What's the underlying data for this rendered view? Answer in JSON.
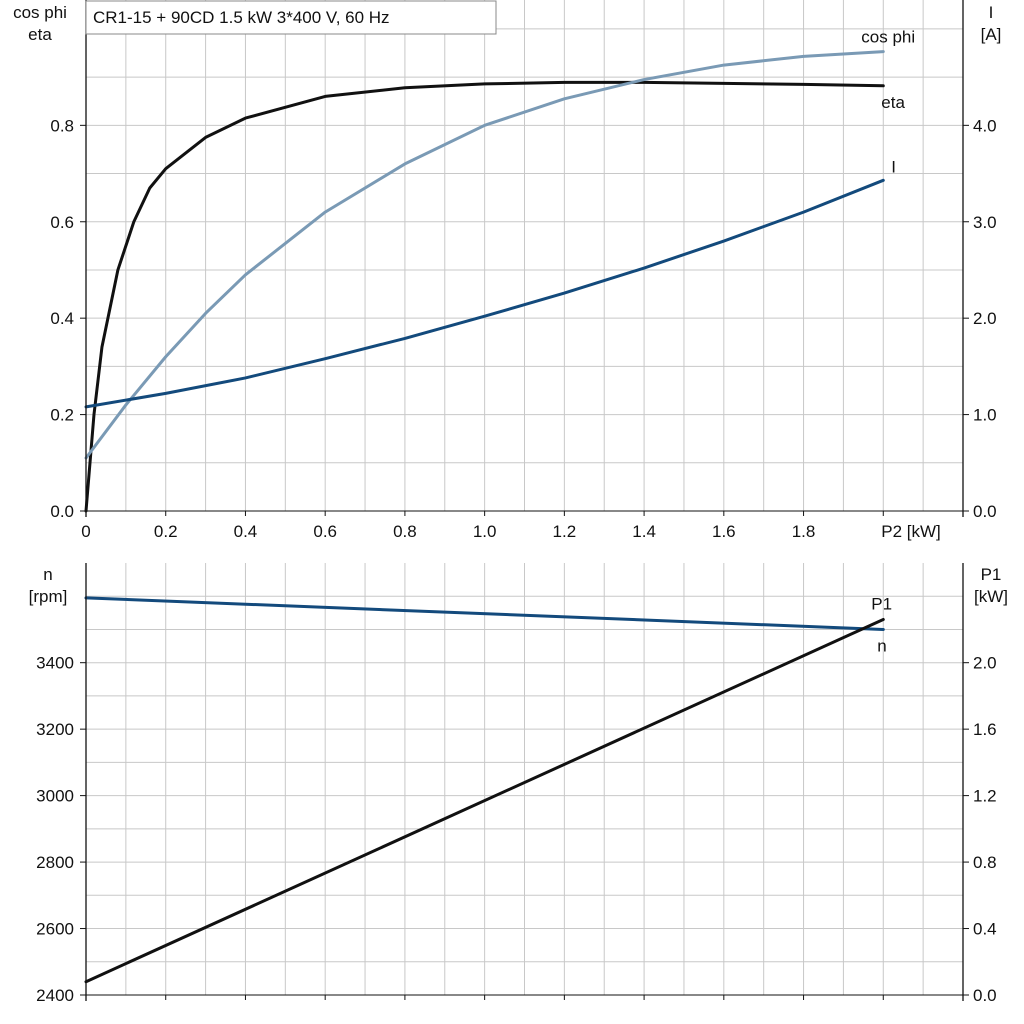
{
  "title": "CR1-15 + 90CD   1.5 kW   3*400 V, 60 Hz",
  "colors": {
    "eta": "#111111",
    "cos_phi": "#7a9ab5",
    "current": "#134a7c",
    "speed": "#134a7c",
    "p1": "#111111",
    "grid": "#c8c8c8",
    "axis": "#111111"
  },
  "chart_data": [
    {
      "type": "line",
      "name": "motor-efficiency-chart",
      "xlabel": "P2 [kW]",
      "xlim": [
        0,
        2.2
      ],
      "xticks": [
        "0",
        "0.2",
        "0.4",
        "0.6",
        "0.8",
        "1.0",
        "1.2",
        "1.4",
        "1.6",
        "1.8"
      ],
      "y_left_label": [
        "cos phi",
        "eta"
      ],
      "y_left_lim": [
        0,
        1.06
      ],
      "y_left_ticks": [
        "0.0",
        "0.2",
        "0.4",
        "0.6",
        "0.8"
      ],
      "y_right_label": [
        "I",
        "[A]"
      ],
      "y_right_lim": [
        0,
        5.3
      ],
      "y_right_ticks": [
        "0.0",
        "1.0",
        "2.0",
        "3.0",
        "4.0"
      ],
      "grid": true,
      "series": [
        {
          "name": "eta",
          "axis": "left",
          "x": [
            0,
            0.02,
            0.04,
            0.08,
            0.12,
            0.16,
            0.2,
            0.3,
            0.4,
            0.6,
            0.8,
            1.0,
            1.2,
            1.4,
            1.6,
            1.8,
            2.0
          ],
          "y": [
            0,
            0.2,
            0.34,
            0.5,
            0.6,
            0.67,
            0.71,
            0.775,
            0.815,
            0.86,
            0.878,
            0.886,
            0.889,
            0.889,
            0.887,
            0.885,
            0.882
          ]
        },
        {
          "name": "cos phi",
          "axis": "left",
          "x": [
            0,
            0.1,
            0.2,
            0.3,
            0.4,
            0.6,
            0.8,
            1.0,
            1.2,
            1.4,
            1.6,
            1.8,
            2.0
          ],
          "y": [
            0.11,
            0.22,
            0.32,
            0.41,
            0.49,
            0.62,
            0.72,
            0.8,
            0.855,
            0.895,
            0.925,
            0.943,
            0.953
          ]
        },
        {
          "name": "I",
          "axis": "right",
          "x": [
            0,
            0.2,
            0.4,
            0.6,
            0.8,
            1.0,
            1.2,
            1.4,
            1.6,
            1.8,
            2.0
          ],
          "y": [
            1.08,
            1.22,
            1.38,
            1.58,
            1.79,
            2.02,
            2.26,
            2.52,
            2.8,
            3.1,
            3.43
          ]
        }
      ]
    },
    {
      "type": "line",
      "name": "speed-power-chart",
      "xlim": [
        0,
        2.2
      ],
      "y_left_label": [
        "n",
        "[rpm]"
      ],
      "y_left_lim": [
        2400,
        3700
      ],
      "y_left_ticks": [
        "2400",
        "2600",
        "2800",
        "3000",
        "3200",
        "3400"
      ],
      "y_right_label": [
        "P1",
        "[kW]"
      ],
      "y_right_lim": [
        0,
        2.6
      ],
      "y_right_ticks": [
        "0.0",
        "0.4",
        "0.8",
        "1.2",
        "1.6",
        "2.0"
      ],
      "grid": true,
      "series": [
        {
          "name": "n",
          "axis": "left",
          "x": [
            0,
            2.0
          ],
          "y": [
            3595,
            3500
          ]
        },
        {
          "name": "P1",
          "axis": "right",
          "x": [
            0,
            2.0
          ],
          "y": [
            0.08,
            2.26
          ]
        }
      ]
    }
  ]
}
